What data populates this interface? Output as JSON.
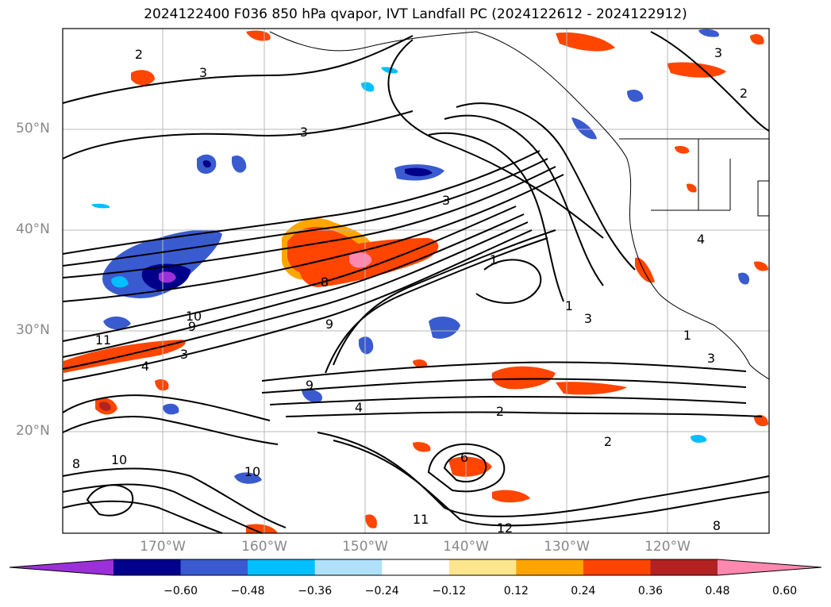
{
  "title": "2024122400 F036 850 hPa qvapor, IVT Landfall PC (2024122612 - 2024122912)",
  "map": {
    "lat_labels": [
      "50°N",
      "40°N",
      "30°N",
      "20°N"
    ],
    "lon_labels": [
      "170°W",
      "160°W",
      "150°W",
      "140°W",
      "130°W",
      "120°W"
    ],
    "contour_labels": [
      "2",
      "3",
      "3",
      "3",
      "3",
      "2",
      "3",
      "4",
      "1",
      "1",
      "3",
      "1",
      "3",
      "4",
      "10",
      "11",
      "9",
      "8",
      "9",
      "4",
      "2",
      "2",
      "10",
      "10",
      "6",
      "8",
      "12",
      "11",
      "8",
      "9"
    ]
  },
  "colorbar": {
    "ticks": [
      "−0.60",
      "−0.48",
      "−0.36",
      "−0.24",
      "−0.12",
      "0.12",
      "0.24",
      "0.36",
      "0.48",
      "0.60"
    ],
    "colors": [
      "#9b30d9",
      "#00008b",
      "#3a5bcf",
      "#00bfff",
      "#b0e0fa",
      "#ffffff",
      "#ffe68c",
      "#ffa500",
      "#ff4500",
      "#b22222",
      "#ff88b0"
    ]
  }
}
